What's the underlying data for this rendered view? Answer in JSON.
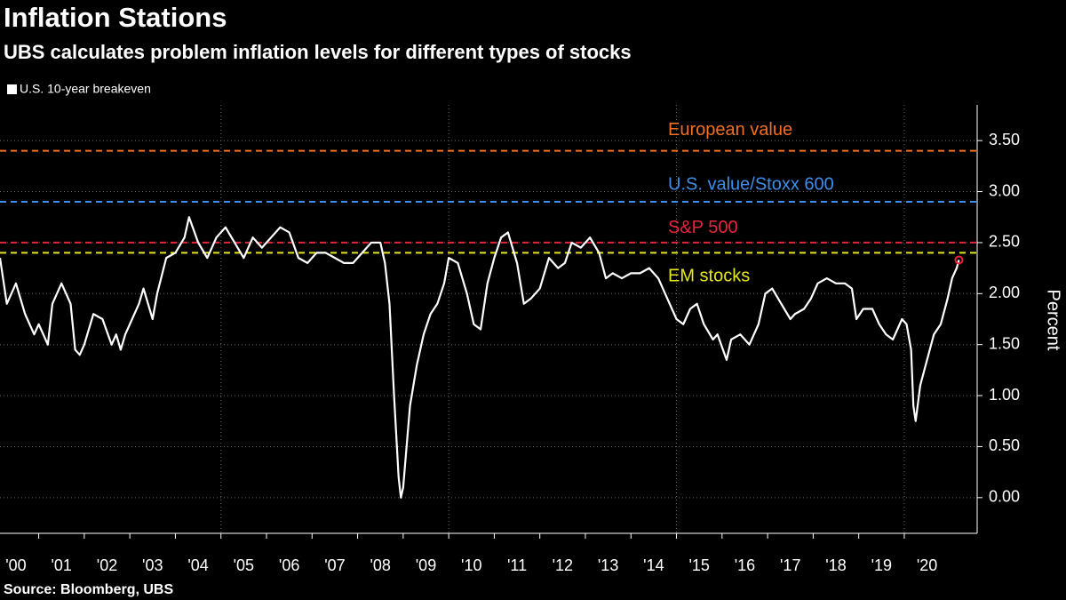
{
  "chart_data": {
    "type": "line",
    "title": "Inflation Stations",
    "subtitle": "UBS calculates problem inflation levels for different types of stocks",
    "source": "Source: Bloomberg, UBS",
    "y_axis_label": "Percent",
    "background": "#000000",
    "grid": true,
    "x": [
      2000.15,
      2000.3,
      2000.5,
      2000.7,
      2000.9,
      2001.0,
      2001.2,
      2001.3,
      2001.5,
      2001.7,
      2001.8,
      2001.9,
      2002.0,
      2002.2,
      2002.4,
      2002.6,
      2002.7,
      2002.8,
      2002.9,
      2003.0,
      2003.2,
      2003.3,
      2003.5,
      2003.6,
      2003.8,
      2004.0,
      2004.2,
      2004.3,
      2004.5,
      2004.7,
      2004.9,
      2005.1,
      2005.3,
      2005.5,
      2005.7,
      2005.9,
      2006.1,
      2006.3,
      2006.5,
      2006.7,
      2006.9,
      2007.1,
      2007.3,
      2007.5,
      2007.7,
      2007.9,
      2008.1,
      2008.3,
      2008.5,
      2008.6,
      2008.7,
      2008.8,
      2008.9,
      2008.95,
      2009.0,
      2009.15,
      2009.3,
      2009.45,
      2009.6,
      2009.75,
      2009.9,
      2010.0,
      2010.2,
      2010.4,
      2010.55,
      2010.7,
      2010.85,
      2011.0,
      2011.15,
      2011.3,
      2011.5,
      2011.65,
      2011.8,
      2012.0,
      2012.2,
      2012.4,
      2012.55,
      2012.7,
      2012.9,
      2013.1,
      2013.3,
      2013.45,
      2013.6,
      2013.8,
      2014.0,
      2014.2,
      2014.4,
      2014.6,
      2014.8,
      2015.0,
      2015.15,
      2015.3,
      2015.45,
      2015.6,
      2015.8,
      2015.9,
      2016.1,
      2016.2,
      2016.4,
      2016.6,
      2016.8,
      2016.95,
      2017.1,
      2017.3,
      2017.5,
      2017.6,
      2017.8,
      2017.95,
      2018.1,
      2018.3,
      2018.5,
      2018.7,
      2018.85,
      2018.95,
      2019.1,
      2019.3,
      2019.45,
      2019.6,
      2019.75,
      2019.95,
      2020.05,
      2020.15,
      2020.2,
      2020.25,
      2020.35,
      2020.5,
      2020.65,
      2020.8,
      2020.95,
      2021.05,
      2021.15,
      2021.2
    ],
    "series": [
      {
        "name": "U.S. 10-year breakeven",
        "color": "#ffffff",
        "values": [
          2.35,
          1.9,
          2.1,
          1.8,
          1.6,
          1.7,
          1.5,
          1.9,
          2.1,
          1.9,
          1.45,
          1.4,
          1.5,
          1.8,
          1.75,
          1.5,
          1.6,
          1.45,
          1.6,
          1.7,
          1.9,
          2.05,
          1.75,
          2.0,
          2.35,
          2.4,
          2.55,
          2.75,
          2.5,
          2.35,
          2.55,
          2.65,
          2.5,
          2.35,
          2.55,
          2.45,
          2.55,
          2.65,
          2.6,
          2.35,
          2.3,
          2.4,
          2.4,
          2.35,
          2.3,
          2.3,
          2.4,
          2.5,
          2.5,
          2.3,
          1.9,
          1.0,
          0.2,
          0.0,
          0.1,
          0.9,
          1.3,
          1.6,
          1.8,
          1.9,
          2.1,
          2.35,
          2.3,
          2.0,
          1.7,
          1.65,
          2.1,
          2.35,
          2.55,
          2.6,
          2.3,
          1.9,
          1.95,
          2.05,
          2.35,
          2.25,
          2.3,
          2.5,
          2.45,
          2.55,
          2.4,
          2.15,
          2.2,
          2.15,
          2.2,
          2.2,
          2.25,
          2.15,
          1.95,
          1.75,
          1.7,
          1.85,
          1.9,
          1.7,
          1.55,
          1.6,
          1.35,
          1.55,
          1.6,
          1.5,
          1.7,
          2.0,
          2.05,
          1.9,
          1.75,
          1.8,
          1.85,
          1.95,
          2.1,
          2.15,
          2.1,
          2.1,
          2.05,
          1.75,
          1.85,
          1.85,
          1.7,
          1.6,
          1.55,
          1.75,
          1.7,
          1.45,
          0.9,
          0.75,
          1.1,
          1.35,
          1.6,
          1.7,
          1.95,
          2.15,
          2.25,
          2.33
        ]
      }
    ],
    "last_point_marker_color": "#e8243c",
    "reference_lines": [
      {
        "label": "European value",
        "value": 3.4,
        "color": "#f26f21"
      },
      {
        "label": "U.S. value/Stoxx 600",
        "value": 2.9,
        "color": "#3d8ee8"
      },
      {
        "label": "S&P 500",
        "value": 2.5,
        "color": "#e8243c"
      },
      {
        "label": "EM stocks",
        "value": 2.4,
        "color": "#e6e619"
      }
    ],
    "xlim": [
      2000.15,
      2021.6
    ],
    "xticks": [
      {
        "value": 2000,
        "label": "'00"
      },
      {
        "value": 2001,
        "label": "'01"
      },
      {
        "value": 2002,
        "label": "'02"
      },
      {
        "value": 2003,
        "label": "'03"
      },
      {
        "value": 2004,
        "label": "'04"
      },
      {
        "value": 2005,
        "label": "'05"
      },
      {
        "value": 2006,
        "label": "'06"
      },
      {
        "value": 2007,
        "label": "'07"
      },
      {
        "value": 2008,
        "label": "'08"
      },
      {
        "value": 2009,
        "label": "'09"
      },
      {
        "value": 2010,
        "label": "'10"
      },
      {
        "value": 2011,
        "label": "'11"
      },
      {
        "value": 2012,
        "label": "'12"
      },
      {
        "value": 2013,
        "label": "'13"
      },
      {
        "value": 2014,
        "label": "'14"
      },
      {
        "value": 2015,
        "label": "'15"
      },
      {
        "value": 2016,
        "label": "'16"
      },
      {
        "value": 2017,
        "label": "'17"
      },
      {
        "value": 2018,
        "label": "'18"
      },
      {
        "value": 2019,
        "label": "'19"
      },
      {
        "value": 2020,
        "label": "'20"
      }
    ],
    "ylim": [
      -0.35,
      3.85
    ],
    "yticks": [
      {
        "value": 0,
        "label": "0.00"
      },
      {
        "value": 0.5,
        "label": "0.50"
      },
      {
        "value": 1,
        "label": "1.00"
      },
      {
        "value": 1.5,
        "label": "1.50"
      },
      {
        "value": 2,
        "label": "2.00"
      },
      {
        "value": 2.5,
        "label": "2.50"
      },
      {
        "value": 3,
        "label": "3.00"
      },
      {
        "value": 3.5,
        "label": "3.50"
      }
    ]
  }
}
